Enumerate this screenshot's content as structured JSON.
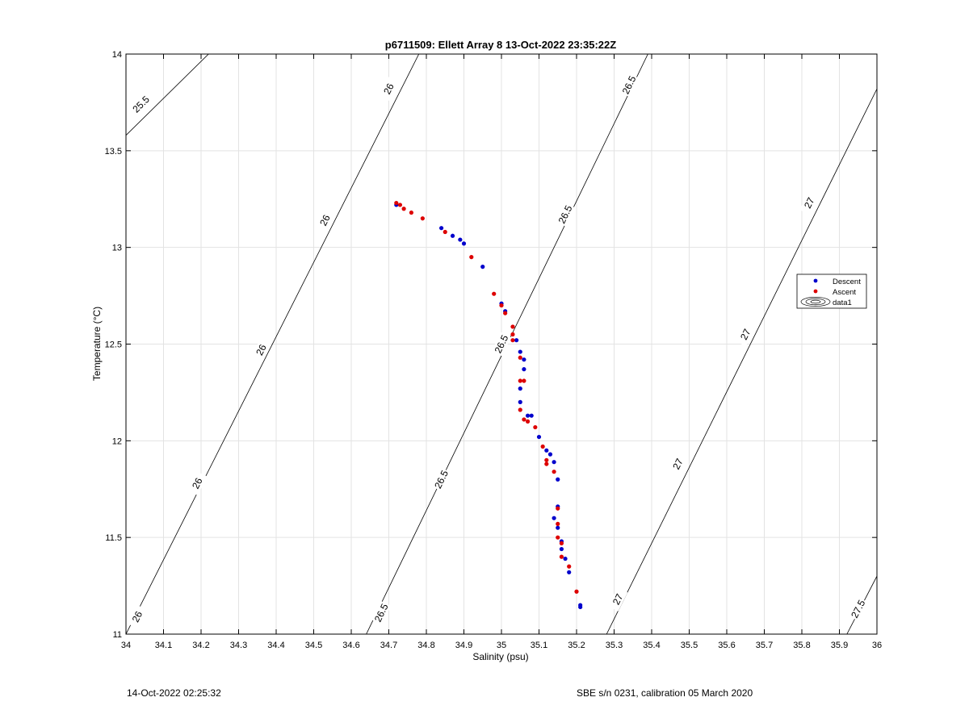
{
  "chart_data": {
    "type": "scatter",
    "title": "p6711509: Ellett Array 8 13-Oct-2022 23:35:22Z",
    "xlabel": "Salinity (psu)",
    "ylabel": "Temperature (°C)",
    "xlim": [
      34,
      36
    ],
    "ylim": [
      11,
      14
    ],
    "xticks": [
      34,
      34.1,
      34.2,
      34.3,
      34.4,
      34.5,
      34.6,
      34.7,
      34.8,
      34.9,
      35,
      35.1,
      35.2,
      35.3,
      35.4,
      35.5,
      35.6,
      35.7,
      35.8,
      35.9,
      36
    ],
    "xtick_labels": [
      "34",
      "34.1",
      "34.2",
      "34.3",
      "34.4",
      "34.5",
      "34.6",
      "34.7",
      "34.8",
      "34.9",
      "35",
      "35.1",
      "35.2",
      "35.3",
      "35.4",
      "35.5",
      "35.6",
      "35.7",
      "35.8",
      "35.9",
      "36"
    ],
    "yticks": [
      11,
      11.5,
      12,
      12.5,
      13,
      13.5,
      14
    ],
    "ytick_labels": [
      "11",
      "11.5",
      "12",
      "12.5",
      "13",
      "13.5",
      "14"
    ],
    "grid": true,
    "legend": {
      "placement": "right",
      "entries": [
        {
          "name": "Descent",
          "color": "#0000cc",
          "marker": "dot"
        },
        {
          "name": "Ascent",
          "color": "#dd0000",
          "marker": "dot"
        },
        {
          "name": "data1",
          "color": "#000000",
          "marker": "contour"
        }
      ]
    },
    "series": [
      {
        "name": "Descent",
        "color": "#0000cc",
        "points": [
          [
            34.72,
            13.22
          ],
          [
            34.84,
            13.1
          ],
          [
            34.87,
            13.06
          ],
          [
            34.89,
            13.04
          ],
          [
            34.9,
            13.02
          ],
          [
            34.95,
            12.9
          ],
          [
            35.0,
            12.71
          ],
          [
            35.01,
            12.67
          ],
          [
            35.04,
            12.52
          ],
          [
            35.05,
            12.46
          ],
          [
            35.06,
            12.42
          ],
          [
            35.06,
            12.37
          ],
          [
            35.05,
            12.27
          ],
          [
            35.05,
            12.2
          ],
          [
            35.07,
            12.13
          ],
          [
            35.08,
            12.13
          ],
          [
            35.1,
            12.02
          ],
          [
            35.12,
            11.95
          ],
          [
            35.13,
            11.93
          ],
          [
            35.14,
            11.89
          ],
          [
            35.15,
            11.8
          ],
          [
            35.15,
            11.66
          ],
          [
            35.14,
            11.6
          ],
          [
            35.15,
            11.55
          ],
          [
            35.16,
            11.48
          ],
          [
            35.16,
            11.44
          ],
          [
            35.17,
            11.39
          ],
          [
            35.18,
            11.32
          ],
          [
            35.21,
            11.15
          ],
          [
            35.21,
            11.14
          ]
        ]
      },
      {
        "name": "Ascent",
        "color": "#dd0000",
        "points": [
          [
            34.72,
            13.23
          ],
          [
            34.73,
            13.22
          ],
          [
            34.74,
            13.2
          ],
          [
            34.76,
            13.18
          ],
          [
            34.79,
            13.15
          ],
          [
            34.85,
            13.08
          ],
          [
            34.92,
            12.95
          ],
          [
            34.98,
            12.76
          ],
          [
            35.0,
            12.7
          ],
          [
            35.01,
            12.66
          ],
          [
            35.03,
            12.59
          ],
          [
            35.03,
            12.55
          ],
          [
            35.03,
            12.52
          ],
          [
            35.05,
            12.43
          ],
          [
            35.05,
            12.31
          ],
          [
            35.06,
            12.31
          ],
          [
            35.05,
            12.16
          ],
          [
            35.06,
            12.11
          ],
          [
            35.07,
            12.1
          ],
          [
            35.09,
            12.07
          ],
          [
            35.11,
            11.97
          ],
          [
            35.12,
            11.9
          ],
          [
            35.12,
            11.88
          ],
          [
            35.14,
            11.84
          ],
          [
            35.15,
            11.65
          ],
          [
            35.15,
            11.57
          ],
          [
            35.15,
            11.5
          ],
          [
            35.16,
            11.47
          ],
          [
            35.16,
            11.4
          ],
          [
            35.18,
            11.35
          ],
          [
            35.2,
            11.22
          ]
        ]
      }
    ],
    "contours": [
      {
        "level": "25.5",
        "points": [
          [
            34.0,
            13.58
          ],
          [
            34.22,
            14.0
          ]
        ],
        "labels": [
          {
            "text": "25.5",
            "at": [
              34.04,
              13.74
            ]
          }
        ]
      },
      {
        "level": "26",
        "points": [
          [
            34.0,
            10.97
          ],
          [
            34.0,
            11.0
          ],
          [
            34.78,
            14.0
          ]
        ],
        "labels": [
          {
            "text": "26",
            "at": [
              34.03,
              11.09
            ]
          },
          {
            "text": "26",
            "at": [
              34.19,
              11.78
            ]
          },
          {
            "text": "26",
            "at": [
              34.36,
              12.47
            ]
          },
          {
            "text": "26",
            "at": [
              34.53,
              13.14
            ]
          },
          {
            "text": "26",
            "at": [
              34.7,
              13.82
            ]
          }
        ]
      },
      {
        "level": "26.5",
        "points": [
          [
            34.64,
            11.0
          ],
          [
            35.39,
            14.0
          ]
        ],
        "labels": [
          {
            "text": "26.5",
            "at": [
              34.68,
              11.11
            ]
          },
          {
            "text": "26.5",
            "at": [
              34.84,
              11.8
            ]
          },
          {
            "text": "26.5",
            "at": [
              35.0,
              12.5
            ]
          },
          {
            "text": "26.5",
            "at": [
              35.17,
              13.17
            ]
          },
          {
            "text": "26.5",
            "at": [
              35.34,
              13.84
            ]
          }
        ]
      },
      {
        "level": "27",
        "points": [
          [
            35.28,
            11.0
          ],
          [
            36.0,
            13.82
          ]
        ],
        "labels": [
          {
            "text": "27",
            "at": [
              35.31,
              11.18
            ]
          },
          {
            "text": "27",
            "at": [
              35.47,
              11.88
            ]
          },
          {
            "text": "27",
            "at": [
              35.65,
              12.55
            ]
          },
          {
            "text": "27",
            "at": [
              35.82,
              13.23
            ]
          }
        ]
      },
      {
        "level": "27.5",
        "points": [
          [
            35.92,
            11.0
          ],
          [
            36.0,
            11.3
          ]
        ],
        "labels": [
          {
            "text": "27.5",
            "at": [
              35.95,
              11.13
            ]
          }
        ]
      }
    ]
  },
  "footer": {
    "left": "14-Oct-2022 02:25:32",
    "right": "SBE s/n 0231, calibration 05 March 2020"
  }
}
